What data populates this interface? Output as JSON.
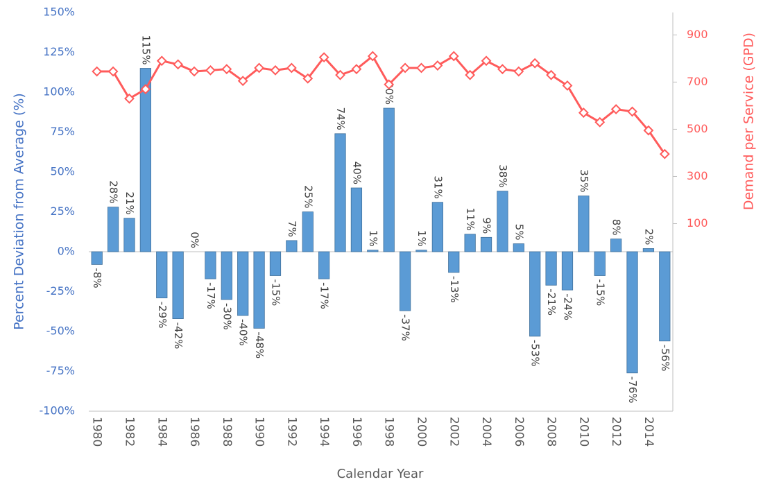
{
  "chart_data": {
    "type": "bar",
    "x_label": "Calendar Year",
    "y_label": "Percent Deviation from Average (%)",
    "y2_label": "Demand per Service (GPD)",
    "categories": [
      "1980",
      null,
      "1982",
      null,
      "1984",
      null,
      "1986",
      null,
      "1988",
      null,
      "1990",
      null,
      "1992",
      null,
      "1994",
      null,
      "1996",
      null,
      "1998",
      null,
      "2000",
      null,
      "2002",
      null,
      "2004",
      null,
      "2006",
      null,
      "2008",
      null,
      "2010",
      null,
      "2012",
      null,
      "2014",
      null
    ],
    "series": [
      {
        "type": "bar",
        "color": "#5b9bd5",
        "values": [
          -8,
          28,
          21,
          115,
          -29,
          -42,
          0,
          -17,
          -30,
          -40,
          -48,
          -15,
          7,
          25,
          -17,
          74,
          40,
          1,
          90,
          -37,
          1,
          31,
          -13,
          11,
          9,
          38,
          5,
          -53,
          -21,
          -24,
          35,
          -15,
          8,
          -76,
          2,
          -56
        ],
        "value_labels": [
          "-8%",
          "28%",
          "21%",
          "115%",
          "-29%",
          "-42%",
          "0%",
          "-17%",
          "-30%",
          "-40%",
          "-48%",
          "-15%",
          "7%",
          "25%",
          "-17%",
          "74%",
          "40%",
          "1%",
          "90%",
          "-37%",
          "1%",
          "31%",
          "-13%",
          "11%",
          "9%",
          "38%",
          "5%",
          "-53%",
          "-21%",
          "-24%",
          "35%",
          "-15%",
          "8%",
          "-76%",
          "2%",
          "-56%"
        ]
      },
      {
        "type": "line",
        "axis": "y2",
        "color": "#ff5b5b",
        "values": [
          745,
          745,
          630,
          670,
          790,
          775,
          745,
          750,
          755,
          705,
          760,
          750,
          760,
          715,
          805,
          730,
          755,
          810,
          690,
          760,
          760,
          770,
          810,
          730,
          790,
          755,
          745,
          780,
          730,
          685,
          570,
          530,
          585,
          575,
          495,
          395
        ]
      }
    ],
    "ylim": [
      -100,
      150
    ],
    "yticks": [
      {
        "value": -100,
        "label": "-100%"
      },
      {
        "value": -75,
        "label": "-75%"
      },
      {
        "value": -50,
        "label": "-50%"
      },
      {
        "value": -25,
        "label": "-25%"
      },
      {
        "value": 0,
        "label": "0%"
      },
      {
        "value": 25,
        "label": "25%"
      },
      {
        "value": 50,
        "label": "50%"
      },
      {
        "value": 75,
        "label": "75%"
      },
      {
        "value": 100,
        "label": "100%"
      },
      {
        "value": 125,
        "label": "125%"
      },
      {
        "value": 150,
        "label": "150%"
      }
    ],
    "y2lim": [
      -695,
      995
    ],
    "y2ticks": [
      100,
      300,
      500,
      700,
      900
    ]
  }
}
